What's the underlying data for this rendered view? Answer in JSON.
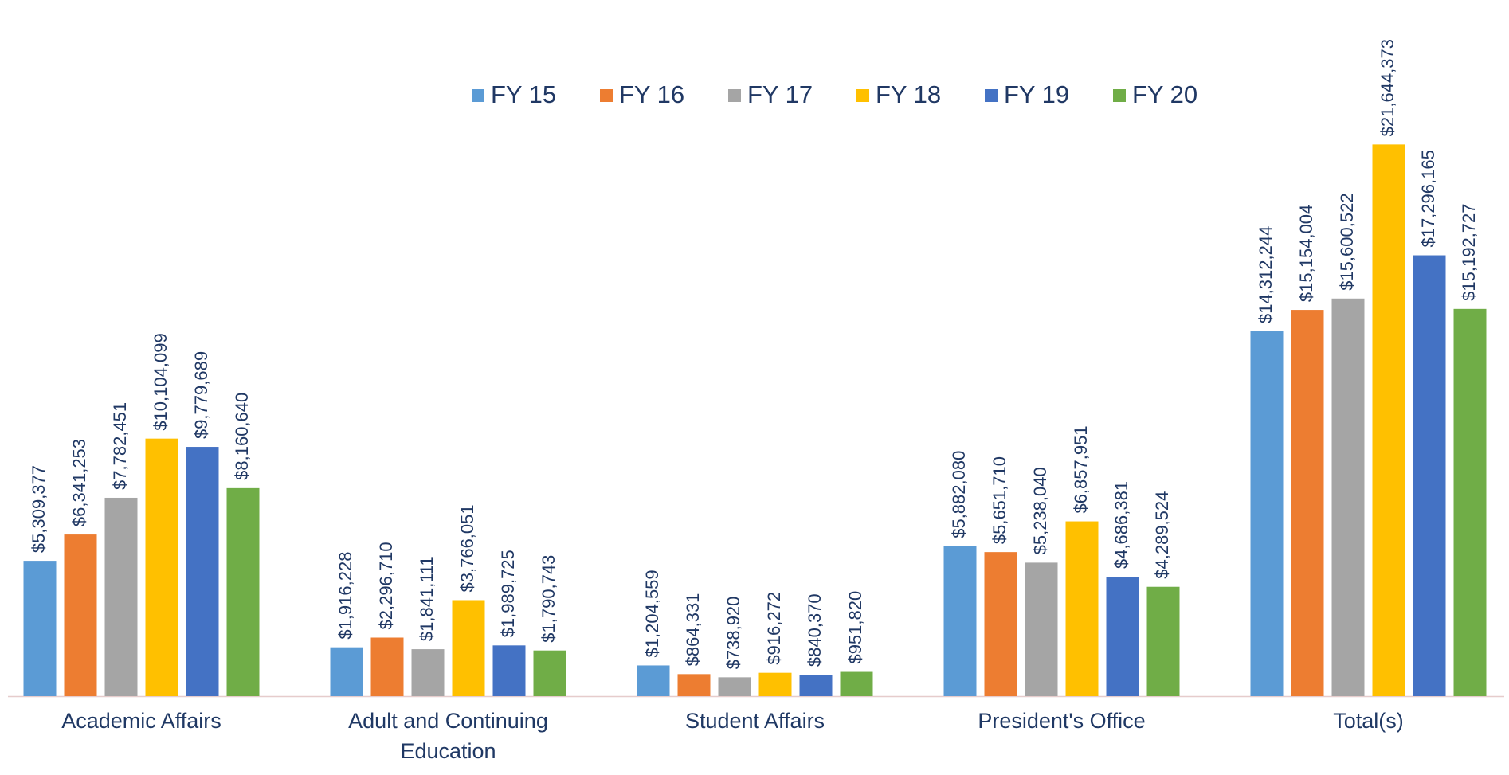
{
  "chart_data": {
    "type": "bar",
    "categories": [
      "Academic Affairs",
      "Adult and Continuing Education",
      "Student Affairs",
      "President's Office",
      "Total(s)"
    ],
    "series": [
      {
        "name": "FY 15",
        "color": "#5b9bd5",
        "values": [
          5309377,
          1916228,
          1204559,
          5882080,
          14312244
        ],
        "value_labels": [
          "$5,309,377",
          "$1,916,228",
          "$1,204,559",
          "$5,882,080",
          "$14,312,244"
        ]
      },
      {
        "name": "FY 16",
        "color": "#ed7d31",
        "values": [
          6341253,
          2296710,
          864331,
          5651710,
          15154004
        ],
        "value_labels": [
          "$6,341,253",
          "$2,296,710",
          "$864,331",
          "$5,651,710",
          "$15,154,004"
        ]
      },
      {
        "name": "FY 17",
        "color": "#a5a5a5",
        "values": [
          7782451,
          1841111,
          738920,
          5238040,
          15600522
        ],
        "value_labels": [
          "$7,782,451",
          "$1,841,111",
          "$738,920",
          "$5,238,040",
          "$15,600,522"
        ]
      },
      {
        "name": "FY 18",
        "color": "#ffc000",
        "values": [
          10104099,
          3766051,
          916272,
          6857951,
          21644373
        ],
        "value_labels": [
          "$10,104,099",
          "$3,766,051",
          "$916,272",
          "$6,857,951",
          "$21,644,373"
        ]
      },
      {
        "name": "FY 19",
        "color": "#4472c4",
        "values": [
          9779689,
          1989725,
          840370,
          4686381,
          17296165
        ],
        "value_labels": [
          "$9,779,689",
          "$1,989,725",
          "$840,370",
          "$4,686,381",
          "$17,296,165"
        ]
      },
      {
        "name": "FY 20",
        "color": "#70ad47",
        "values": [
          8160640,
          1790743,
          951820,
          4289524,
          15192727
        ],
        "value_labels": [
          "$8,160,640",
          "$1,790,743",
          "$951,820",
          "$4,289,524",
          "$15,192,727"
        ]
      }
    ],
    "ylim": [
      0,
      25000000
    ],
    "legend": "top"
  }
}
